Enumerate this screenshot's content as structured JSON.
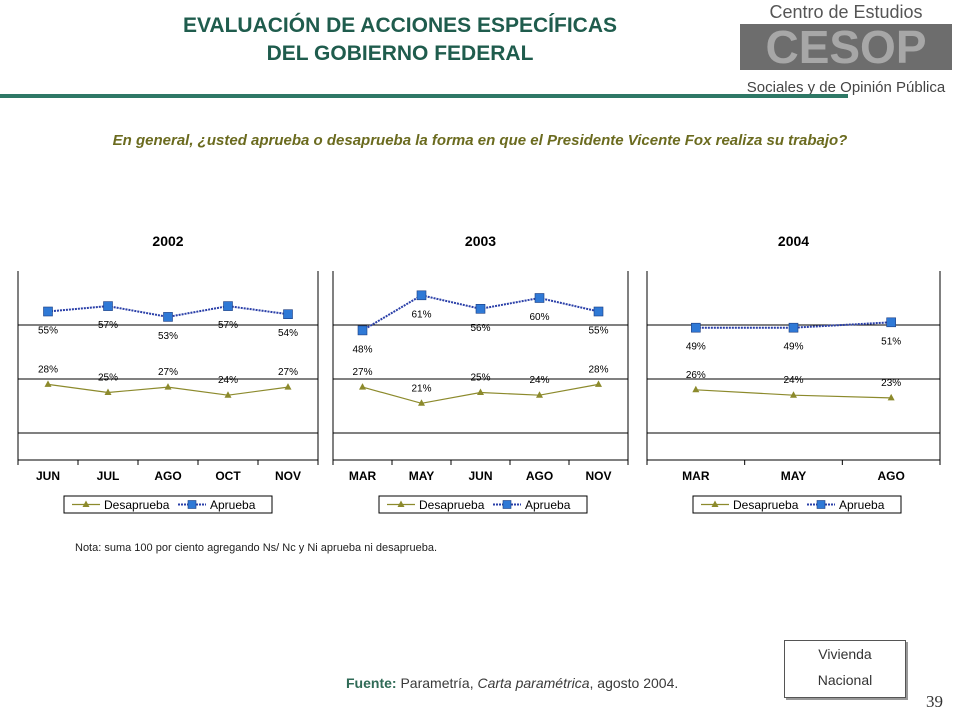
{
  "header": {
    "title_line1": "EVALUACIÓN DE ACCIONES ESPECÍFICAS",
    "title_line2": "DEL GOBIERNO FEDERAL",
    "logo_text": [
      "Centro de Estudios",
      "CESOP",
      "Sociales y de Opinión Pública"
    ]
  },
  "question": "En general, ¿usted aprueba o desaprueba la forma en que el Presidente Vicente Fox realiza su trabajo?",
  "note": "Nota: suma 100 por ciento agregando Ns/ Nc y Ni aprueba ni desaprueba.",
  "source": {
    "label": "Fuente:",
    "text_before": "Parametría,",
    "italic": "Carta paramétrica",
    "text_after": ", agosto 2004."
  },
  "stamp": {
    "line1": "Vivienda",
    "line2": "Nacional"
  },
  "page_number": "39",
  "colors": {
    "aprueba": "#2a3fa8",
    "aprueba_marker": "#2f79d6",
    "desaprueba": "#8c8a2c"
  },
  "chart_data": [
    {
      "type": "line",
      "title": "2002",
      "categories": [
        "JUN",
        "JUL",
        "AGO",
        "OCT",
        "NOV"
      ],
      "ylim": [
        0,
        70
      ],
      "grid": true,
      "legend": "bottom",
      "series": [
        {
          "name": "Desaprueba",
          "values": [
            28,
            25,
            27,
            24,
            27
          ]
        },
        {
          "name": "Aprueba",
          "values": [
            55,
            57,
            53,
            57,
            54
          ]
        }
      ]
    },
    {
      "type": "line",
      "title": "2003",
      "categories": [
        "MAR",
        "MAY",
        "JUN",
        "AGO",
        "NOV"
      ],
      "ylim": [
        0,
        70
      ],
      "grid": true,
      "legend": "bottom",
      "series": [
        {
          "name": "Desaprueba",
          "values": [
            27,
            21,
            25,
            24,
            28
          ]
        },
        {
          "name": "Aprueba",
          "values": [
            48,
            61,
            56,
            60,
            55
          ]
        }
      ]
    },
    {
      "type": "line",
      "title": "2004",
      "categories": [
        "MAR",
        "MAY",
        "AGO"
      ],
      "ylim": [
        0,
        70
      ],
      "grid": true,
      "legend": "bottom",
      "series": [
        {
          "name": "Desaprueba",
          "values": [
            26,
            24,
            23
          ]
        },
        {
          "name": "Aprueba",
          "values": [
            49,
            49,
            51
          ]
        }
      ]
    }
  ]
}
